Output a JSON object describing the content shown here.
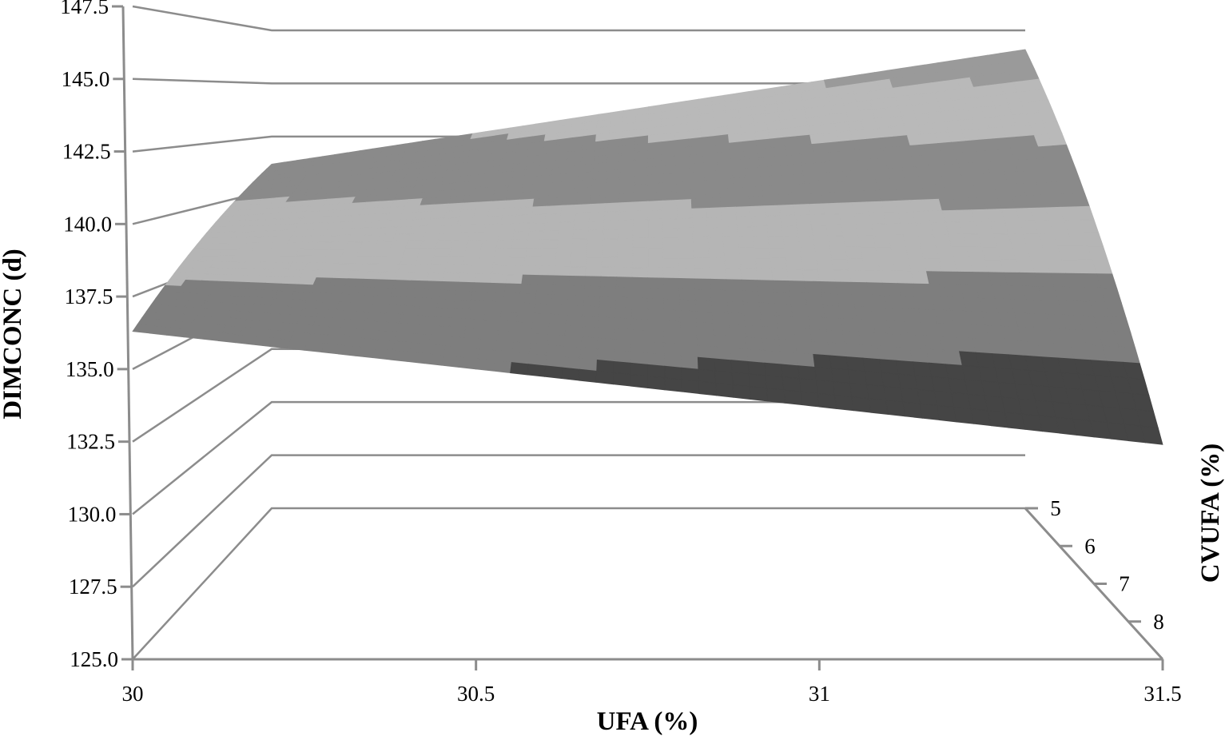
{
  "chart_data": {
    "type": "surface",
    "title": "",
    "xlabel": "UFA (%)",
    "ylabel": "CVUFA (%)",
    "zlabel": "DIMCONC (d)",
    "x_ticks": [
      "30",
      "30.5",
      "31",
      "31.5"
    ],
    "y_ticks": [
      "5",
      "6",
      "7",
      "8"
    ],
    "z_ticks": [
      "125.0",
      "127.5",
      "130.0",
      "132.5",
      "135.0",
      "137.5",
      "140.0",
      "142.5",
      "145.0",
      "147.5"
    ],
    "xlim": [
      30,
      31.5
    ],
    "ylim": [
      5,
      8
    ],
    "zlim": [
      125,
      147.5
    ],
    "grid": true,
    "legend": "none",
    "surface": {
      "x": [
        30,
        31.5
      ],
      "y": [
        5,
        8
      ],
      "z": [
        [
          141.2,
          146.6
        ],
        [
          136.3,
          132.4
        ]
      ]
    },
    "band_colors": [
      "#454545",
      "#7e7e7e",
      "#b5b5b5",
      "#8a8a8a",
      "#b9b9b9",
      "#9a9a9a"
    ],
    "band_ranges": [
      [
        132.5,
        135
      ],
      [
        135,
        137.5
      ],
      [
        137.5,
        140
      ],
      [
        140,
        142.5
      ],
      [
        142.5,
        145
      ],
      [
        145,
        147.5
      ]
    ]
  }
}
